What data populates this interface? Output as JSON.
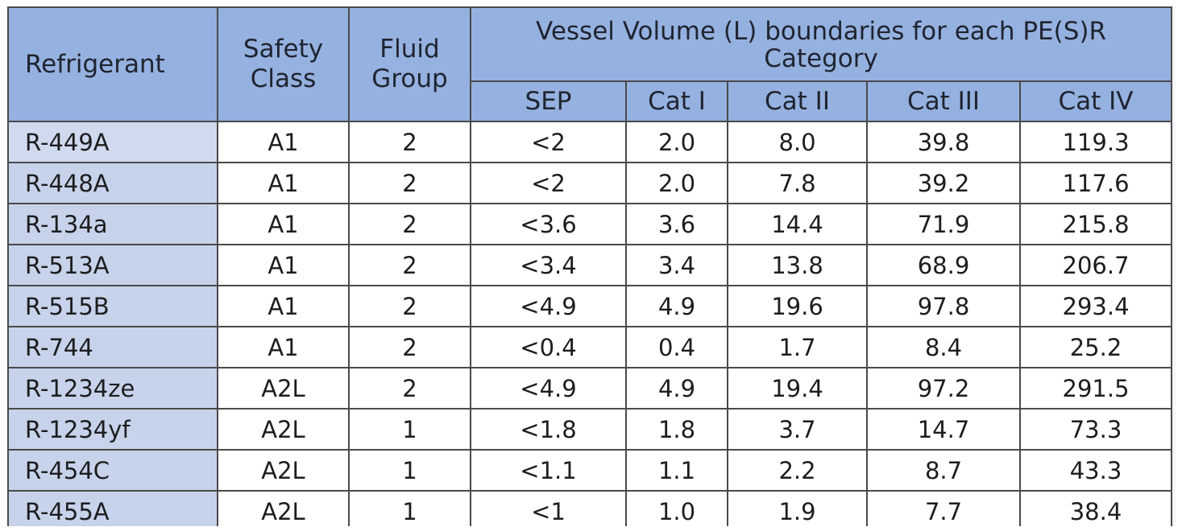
{
  "table": {
    "headers": {
      "refrigerant": "Refrigerant",
      "safety_class_line1": "Safety",
      "safety_class_line2": "Class",
      "fluid_group_line1": "Fluid",
      "fluid_group_line2": "Group",
      "group_title": "Vessel Volume (L) boundaries for each PE(S)R Category",
      "sub": [
        "SEP",
        "Cat I",
        "Cat II",
        "Cat III",
        "Cat IV"
      ]
    },
    "rows": [
      {
        "refrigerant": "R-449A",
        "safety_class": "A1",
        "fluid_group": "2",
        "sep": "<2",
        "cat1": "2.0",
        "cat2": "8.0",
        "cat3": "39.8",
        "cat4": "119.3"
      },
      {
        "refrigerant": "R-448A",
        "safety_class": "A1",
        "fluid_group": "2",
        "sep": "<2",
        "cat1": "2.0",
        "cat2": "7.8",
        "cat3": "39.2",
        "cat4": "117.6"
      },
      {
        "refrigerant": "R-134a",
        "safety_class": "A1",
        "fluid_group": "2",
        "sep": "<3.6",
        "cat1": "3.6",
        "cat2": "14.4",
        "cat3": "71.9",
        "cat4": "215.8"
      },
      {
        "refrigerant": "R-513A",
        "safety_class": "A1",
        "fluid_group": "2",
        "sep": "<3.4",
        "cat1": "3.4",
        "cat2": "13.8",
        "cat3": "68.9",
        "cat4": "206.7"
      },
      {
        "refrigerant": "R-515B",
        "safety_class": "A1",
        "fluid_group": "2",
        "sep": "<4.9",
        "cat1": "4.9",
        "cat2": "19.6",
        "cat3": "97.8",
        "cat4": "293.4"
      },
      {
        "refrigerant": "R-744",
        "safety_class": "A1",
        "fluid_group": "2",
        "sep": "<0.4",
        "cat1": "0.4",
        "cat2": "1.7",
        "cat3": "8.4",
        "cat4": "25.2"
      },
      {
        "refrigerant": "R-1234ze",
        "safety_class": "A2L",
        "fluid_group": "2",
        "sep": "<4.9",
        "cat1": "4.9",
        "cat2": "19.4",
        "cat3": "97.2",
        "cat4": "291.5"
      },
      {
        "refrigerant": "R-1234yf",
        "safety_class": "A2L",
        "fluid_group": "1",
        "sep": "<1.8",
        "cat1": "1.8",
        "cat2": "3.7",
        "cat3": "14.7",
        "cat4": "73.3"
      },
      {
        "refrigerant": "R-454C",
        "safety_class": "A2L",
        "fluid_group": "1",
        "sep": "<1.1",
        "cat1": "1.1",
        "cat2": "2.2",
        "cat3": "8.7",
        "cat4": "43.3"
      },
      {
        "refrigerant": "R-455A",
        "safety_class": "A2L",
        "fluid_group": "1",
        "sep": "<1",
        "cat1": "1.0",
        "cat2": "1.9",
        "cat3": "7.7",
        "cat4": "38.4"
      }
    ]
  },
  "colors": {
    "header_bg": "#95b1df",
    "first_column_bg": "#c6d3ea",
    "cell_bg": "#ffffff",
    "border": "#4a4a4a"
  }
}
